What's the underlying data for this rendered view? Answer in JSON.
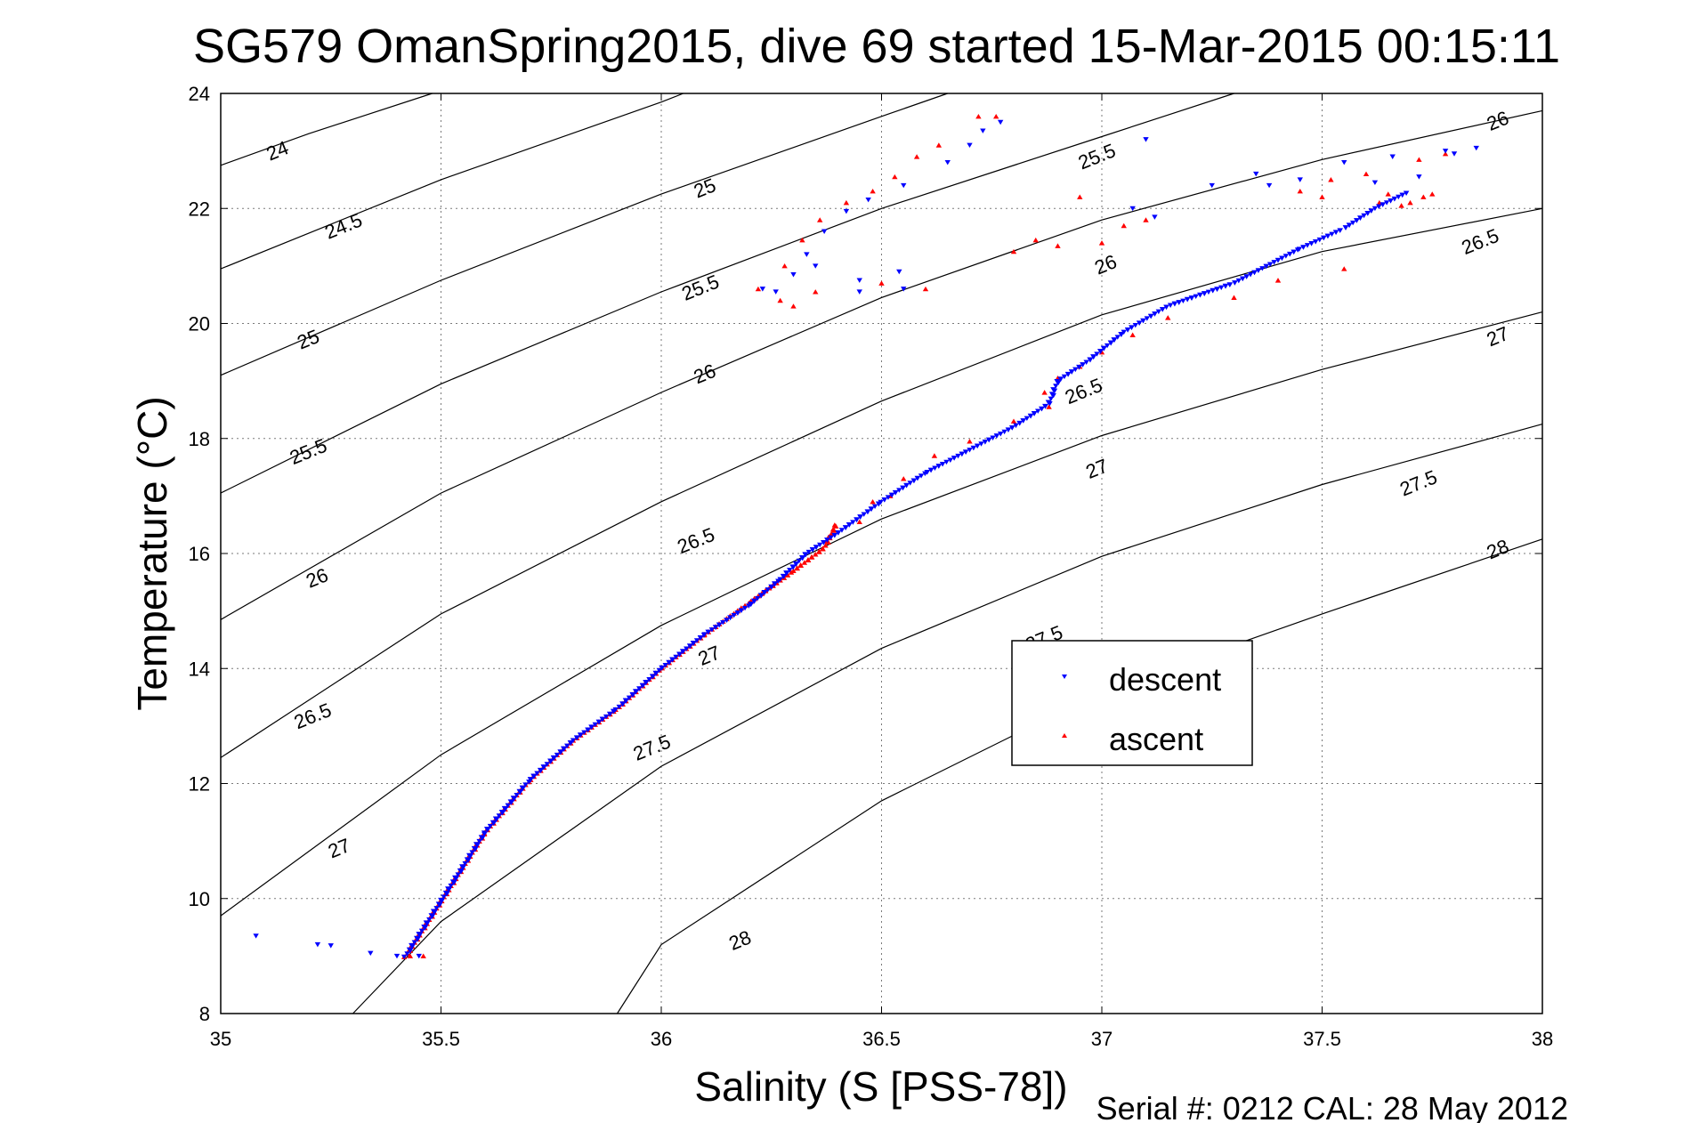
{
  "chart_data": {
    "type": "scatter",
    "title": "SG579 OmanSpring2015, dive 69 started 15-Mar-2015 00:15:11",
    "xlabel": "Salinity (S [PSS-78])",
    "ylabel": "Temperature (°C)",
    "xlim": [
      35,
      38
    ],
    "ylim": [
      8,
      24
    ],
    "xticks": [
      35,
      35.5,
      36,
      36.5,
      37,
      37.5,
      38
    ],
    "xtick_labels": [
      "35",
      "35.5",
      "36",
      "36.5",
      "37",
      "37.5",
      "38"
    ],
    "yticks": [
      8,
      10,
      12,
      14,
      16,
      18,
      20,
      22,
      24
    ],
    "ytick_labels": [
      "8",
      "10",
      "12",
      "14",
      "16",
      "18",
      "20",
      "22",
      "24"
    ],
    "grid": true,
    "legend_position": "center-right",
    "footer": "Serial #: 0212  CAL: 28 May 2012",
    "density_contours": [
      {
        "level": 24,
        "points": [
          [
            35.0,
            22.75
          ],
          [
            35.2,
            23.3
          ],
          [
            35.48,
            24.0
          ]
        ],
        "labels": [
          {
            "text": "24",
            "x": 35.13,
            "y": 22.98
          }
        ]
      },
      {
        "level": 24.5,
        "points": [
          [
            35.0,
            20.95
          ],
          [
            35.5,
            22.5
          ],
          [
            36.0,
            23.85
          ],
          [
            36.05,
            24.0
          ]
        ],
        "labels": [
          {
            "text": "24.5",
            "x": 35.28,
            "y": 21.67
          }
        ]
      },
      {
        "level": 25,
        "points": [
          [
            35.0,
            19.1
          ],
          [
            35.5,
            20.75
          ],
          [
            36.0,
            22.25
          ],
          [
            36.5,
            23.6
          ],
          [
            36.65,
            24.0
          ]
        ],
        "labels": [
          {
            "text": "25",
            "x": 35.2,
            "y": 19.7
          },
          {
            "text": "25",
            "x": 36.1,
            "y": 22.33
          }
        ]
      },
      {
        "level": 25.5,
        "points": [
          [
            35.0,
            17.05
          ],
          [
            35.5,
            18.95
          ],
          [
            36.0,
            20.55
          ],
          [
            36.5,
            22.0
          ],
          [
            37.0,
            23.25
          ],
          [
            37.3,
            24.0
          ]
        ],
        "labels": [
          {
            "text": "25.5",
            "x": 35.2,
            "y": 17.75
          },
          {
            "text": "25.5",
            "x": 36.09,
            "y": 20.6
          },
          {
            "text": "25.5",
            "x": 36.99,
            "y": 22.88
          }
        ]
      },
      {
        "level": 26,
        "points": [
          [
            35.0,
            14.85
          ],
          [
            35.5,
            17.05
          ],
          [
            36.0,
            18.8
          ],
          [
            36.5,
            20.45
          ],
          [
            37.0,
            21.8
          ],
          [
            37.5,
            22.85
          ],
          [
            38.0,
            23.7
          ]
        ],
        "labels": [
          {
            "text": "26",
            "x": 35.22,
            "y": 15.55
          },
          {
            "text": "26",
            "x": 36.1,
            "y": 19.1
          },
          {
            "text": "26",
            "x": 37.01,
            "y": 21.0
          },
          {
            "text": "26",
            "x": 37.9,
            "y": 23.5
          }
        ]
      },
      {
        "level": 26.5,
        "points": [
          [
            35.0,
            12.45
          ],
          [
            35.5,
            14.95
          ],
          [
            36.0,
            16.9
          ],
          [
            36.5,
            18.65
          ],
          [
            37.0,
            20.15
          ],
          [
            37.5,
            21.25
          ],
          [
            38.0,
            22.0
          ]
        ],
        "labels": [
          {
            "text": "26.5",
            "x": 35.21,
            "y": 13.15
          },
          {
            "text": "26.5",
            "x": 36.08,
            "y": 16.2
          },
          {
            "text": "26.5",
            "x": 36.96,
            "y": 18.8
          },
          {
            "text": "26.5",
            "x": 37.86,
            "y": 21.4
          }
        ]
      },
      {
        "level": 27,
        "points": [
          [
            35.0,
            9.7
          ],
          [
            35.5,
            12.5
          ],
          [
            36.0,
            14.75
          ],
          [
            36.5,
            16.6
          ],
          [
            37.0,
            18.05
          ],
          [
            37.5,
            19.2
          ],
          [
            38.0,
            20.2
          ]
        ],
        "labels": [
          {
            "text": "27",
            "x": 35.27,
            "y": 10.85
          },
          {
            "text": "27",
            "x": 36.11,
            "y": 14.2
          },
          {
            "text": "27",
            "x": 36.99,
            "y": 17.45
          },
          {
            "text": "27",
            "x": 37.9,
            "y": 19.75
          }
        ]
      },
      {
        "level": 27.5,
        "points": [
          [
            35.3,
            8.0
          ],
          [
            35.5,
            9.6
          ],
          [
            36.0,
            12.3
          ],
          [
            36.5,
            14.35
          ],
          [
            37.0,
            15.95
          ],
          [
            37.5,
            17.2
          ],
          [
            38.0,
            18.25
          ]
        ],
        "labels": [
          {
            "text": "27.5",
            "x": 35.98,
            "y": 12.6
          },
          {
            "text": "27.5",
            "x": 36.87,
            "y": 14.5
          },
          {
            "text": "27.5",
            "x": 37.72,
            "y": 17.2
          }
        ]
      },
      {
        "level": 28,
        "points": [
          [
            35.9,
            8.0
          ],
          [
            36.0,
            9.2
          ],
          [
            36.5,
            11.7
          ],
          [
            37.0,
            13.6
          ],
          [
            37.5,
            14.95
          ],
          [
            38.0,
            16.25
          ]
        ],
        "labels": [
          {
            "text": "28",
            "x": 36.18,
            "y": 9.25
          },
          {
            "text": "28",
            "x": 37.9,
            "y": 16.05
          }
        ]
      }
    ],
    "series": [
      {
        "name": "descent",
        "color": "#0000ff",
        "marker": "triangle-down",
        "trace": [
          [
            35.42,
            9.0
          ],
          [
            35.5,
            9.95
          ],
          [
            35.6,
            11.15
          ],
          [
            35.7,
            12.05
          ],
          [
            35.8,
            12.75
          ],
          [
            35.9,
            13.3
          ],
          [
            36.0,
            14.0
          ],
          [
            36.1,
            14.6
          ],
          [
            36.2,
            15.1
          ],
          [
            36.27,
            15.55
          ],
          [
            36.33,
            16.0
          ],
          [
            36.4,
            16.35
          ],
          [
            36.5,
            16.9
          ],
          [
            36.6,
            17.4
          ],
          [
            36.7,
            17.8
          ],
          [
            36.8,
            18.2
          ],
          [
            36.88,
            18.6
          ],
          [
            36.9,
            19.0
          ],
          [
            36.97,
            19.35
          ],
          [
            37.05,
            19.85
          ],
          [
            37.15,
            20.3
          ],
          [
            37.3,
            20.7
          ],
          [
            37.45,
            21.3
          ],
          [
            37.55,
            21.65
          ],
          [
            37.62,
            22.0
          ],
          [
            37.7,
            22.3
          ]
        ],
        "points": [
          [
            35.08,
            9.35
          ],
          [
            35.22,
            9.2
          ],
          [
            35.25,
            9.18
          ],
          [
            35.34,
            9.05
          ],
          [
            35.4,
            9.0
          ],
          [
            35.45,
            9.0
          ],
          [
            36.35,
            21.0
          ],
          [
            36.26,
            20.55
          ],
          [
            36.23,
            20.6
          ],
          [
            36.3,
            20.85
          ],
          [
            36.33,
            21.2
          ],
          [
            36.37,
            21.6
          ],
          [
            36.42,
            21.95
          ],
          [
            36.47,
            22.15
          ],
          [
            36.55,
            22.4
          ],
          [
            36.65,
            22.8
          ],
          [
            36.7,
            23.1
          ],
          [
            36.73,
            23.35
          ],
          [
            36.77,
            23.5
          ],
          [
            36.45,
            20.55
          ],
          [
            36.55,
            20.6
          ],
          [
            36.54,
            20.9
          ],
          [
            36.45,
            20.75
          ],
          [
            37.07,
            22.0
          ],
          [
            37.12,
            21.85
          ],
          [
            37.1,
            23.2
          ],
          [
            37.25,
            22.4
          ],
          [
            37.35,
            22.6
          ],
          [
            37.38,
            22.4
          ],
          [
            37.45,
            22.5
          ],
          [
            37.55,
            22.8
          ],
          [
            37.62,
            22.45
          ],
          [
            37.66,
            22.9
          ],
          [
            37.72,
            22.55
          ],
          [
            37.8,
            22.95
          ],
          [
            37.85,
            23.05
          ],
          [
            37.78,
            23.0
          ]
        ]
      },
      {
        "name": "ascent",
        "color": "#ff0000",
        "marker": "triangle-up",
        "trace": [
          [
            35.42,
            9.0
          ],
          [
            35.5,
            9.95
          ],
          [
            35.6,
            11.15
          ],
          [
            35.7,
            12.05
          ],
          [
            35.8,
            12.75
          ],
          [
            35.9,
            13.3
          ],
          [
            36.0,
            14.0
          ],
          [
            36.1,
            14.6
          ],
          [
            36.2,
            15.15
          ],
          [
            36.3,
            15.7
          ],
          [
            36.37,
            16.1
          ],
          [
            36.4,
            16.55
          ]
        ],
        "points": [
          [
            35.43,
            9.0
          ],
          [
            35.46,
            9.0
          ],
          [
            36.45,
            16.55
          ],
          [
            36.48,
            16.9
          ],
          [
            36.52,
            17.0
          ],
          [
            36.55,
            17.3
          ],
          [
            36.62,
            17.7
          ],
          [
            36.7,
            17.95
          ],
          [
            36.8,
            18.3
          ],
          [
            36.88,
            18.55
          ],
          [
            36.87,
            18.8
          ],
          [
            36.9,
            19.05
          ],
          [
            36.95,
            19.25
          ],
          [
            37.0,
            19.5
          ],
          [
            37.07,
            19.8
          ],
          [
            37.15,
            20.1
          ],
          [
            37.3,
            20.45
          ],
          [
            37.4,
            20.75
          ],
          [
            37.55,
            20.95
          ],
          [
            36.22,
            20.6
          ],
          [
            36.27,
            20.4
          ],
          [
            36.3,
            20.3
          ],
          [
            36.35,
            20.55
          ],
          [
            36.5,
            20.7
          ],
          [
            36.6,
            20.6
          ],
          [
            36.28,
            21.0
          ],
          [
            36.32,
            21.45
          ],
          [
            36.36,
            21.8
          ],
          [
            36.42,
            22.1
          ],
          [
            36.48,
            22.3
          ],
          [
            36.53,
            22.55
          ],
          [
            36.58,
            22.9
          ],
          [
            36.63,
            23.1
          ],
          [
            36.72,
            23.6
          ],
          [
            36.76,
            23.6
          ],
          [
            36.8,
            21.25
          ],
          [
            36.85,
            21.45
          ],
          [
            36.9,
            21.35
          ],
          [
            37.0,
            21.4
          ],
          [
            36.95,
            22.2
          ],
          [
            37.05,
            21.7
          ],
          [
            37.1,
            21.8
          ],
          [
            37.45,
            22.3
          ],
          [
            37.52,
            22.5
          ],
          [
            37.6,
            22.6
          ],
          [
            37.65,
            22.25
          ],
          [
            37.7,
            22.1
          ],
          [
            37.73,
            22.2
          ],
          [
            37.75,
            22.25
          ],
          [
            37.68,
            22.05
          ],
          [
            37.63,
            22.1
          ],
          [
            37.5,
            22.2
          ],
          [
            37.78,
            22.95
          ],
          [
            37.72,
            22.85
          ]
        ]
      }
    ]
  }
}
